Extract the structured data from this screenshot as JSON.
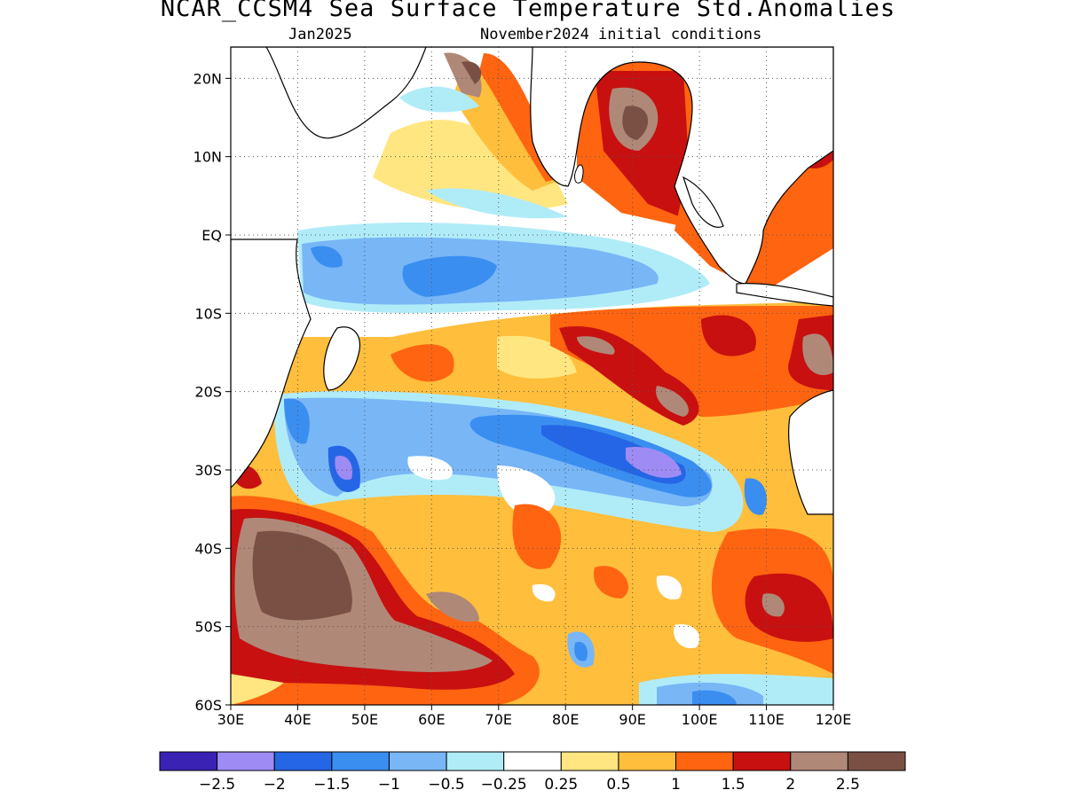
{
  "title": "NCAR_CCSM4 Sea Surface Temperature Std.Anomalies",
  "subtitle_left": "Jan2025",
  "subtitle_right": "November2024 initial conditions",
  "chart_data": {
    "type": "heatmap",
    "variable": "SST standardized anomaly",
    "lon_range": [
      30,
      120
    ],
    "lat_range": [
      -60,
      24
    ],
    "grid": true,
    "x_ticks": [
      "30E",
      "40E",
      "50E",
      "60E",
      "70E",
      "80E",
      "90E",
      "100E",
      "110E",
      "120E"
    ],
    "y_ticks": [
      "20N",
      "10N",
      "EQ",
      "10S",
      "20S",
      "30S",
      "40S",
      "50S",
      "60S"
    ],
    "y_tick_values": [
      20,
      10,
      0,
      -10,
      -20,
      -30,
      -40,
      -50,
      -60
    ],
    "colorbar": {
      "labels": [
        "-2.5",
        "-2",
        "-1.5",
        "-1",
        "-0.5",
        "-0.25",
        "0.25",
        "0.5",
        "1",
        "1.5",
        "2",
        "2.5"
      ],
      "colors": [
        "#3a22b4",
        "#9e8cf4",
        "#2566e6",
        "#3a8ef0",
        "#78b6f6",
        "#b0ecf8",
        "#ffffff",
        "#ffe680",
        "#ffbe3c",
        "#ff6410",
        "#c81010",
        "#b08878",
        "#7a5044"
      ]
    },
    "features": [
      {
        "name": "warm-anomaly-southwest",
        "lon": [
          30,
          65
        ],
        "lat": [
          -58,
          -36
        ],
        "value": 2.5
      },
      {
        "name": "warm-anomaly-bay-of-bengal",
        "lon": [
          83,
          98
        ],
        "lat": [
          8,
          22
        ],
        "value": 2.0
      },
      {
        "name": "warm-anomaly-south-china-sea",
        "lon": [
          110,
          120
        ],
        "lat": [
          6,
          23
        ],
        "value": 2.0
      },
      {
        "name": "warm-anomaly-south-central",
        "lon": [
          80,
          120
        ],
        "lat": [
          -26,
          -10
        ],
        "value": 1.5
      },
      {
        "name": "cool-anomaly-equatorial",
        "lon": [
          40,
          100
        ],
        "lat": [
          -12,
          -1
        ],
        "value": -1.0
      },
      {
        "name": "cool-anomaly-subtropical",
        "lon": [
          35,
          112
        ],
        "lat": [
          -38,
          -22
        ],
        "value": -1.0
      },
      {
        "name": "strong-cool-anomaly-east",
        "lon": [
          88,
          98
        ],
        "lat": [
          -31,
          -26
        ],
        "value": -2.0
      },
      {
        "name": "strong-cool-anomaly-west",
        "lon": [
          45,
          50
        ],
        "lat": [
          -32,
          -28
        ],
        "value": -2.0
      },
      {
        "name": "cool-anomaly-far-south",
        "lon": [
          90,
          112
        ],
        "lat": [
          -60,
          -56
        ],
        "value": -1.0
      }
    ]
  }
}
